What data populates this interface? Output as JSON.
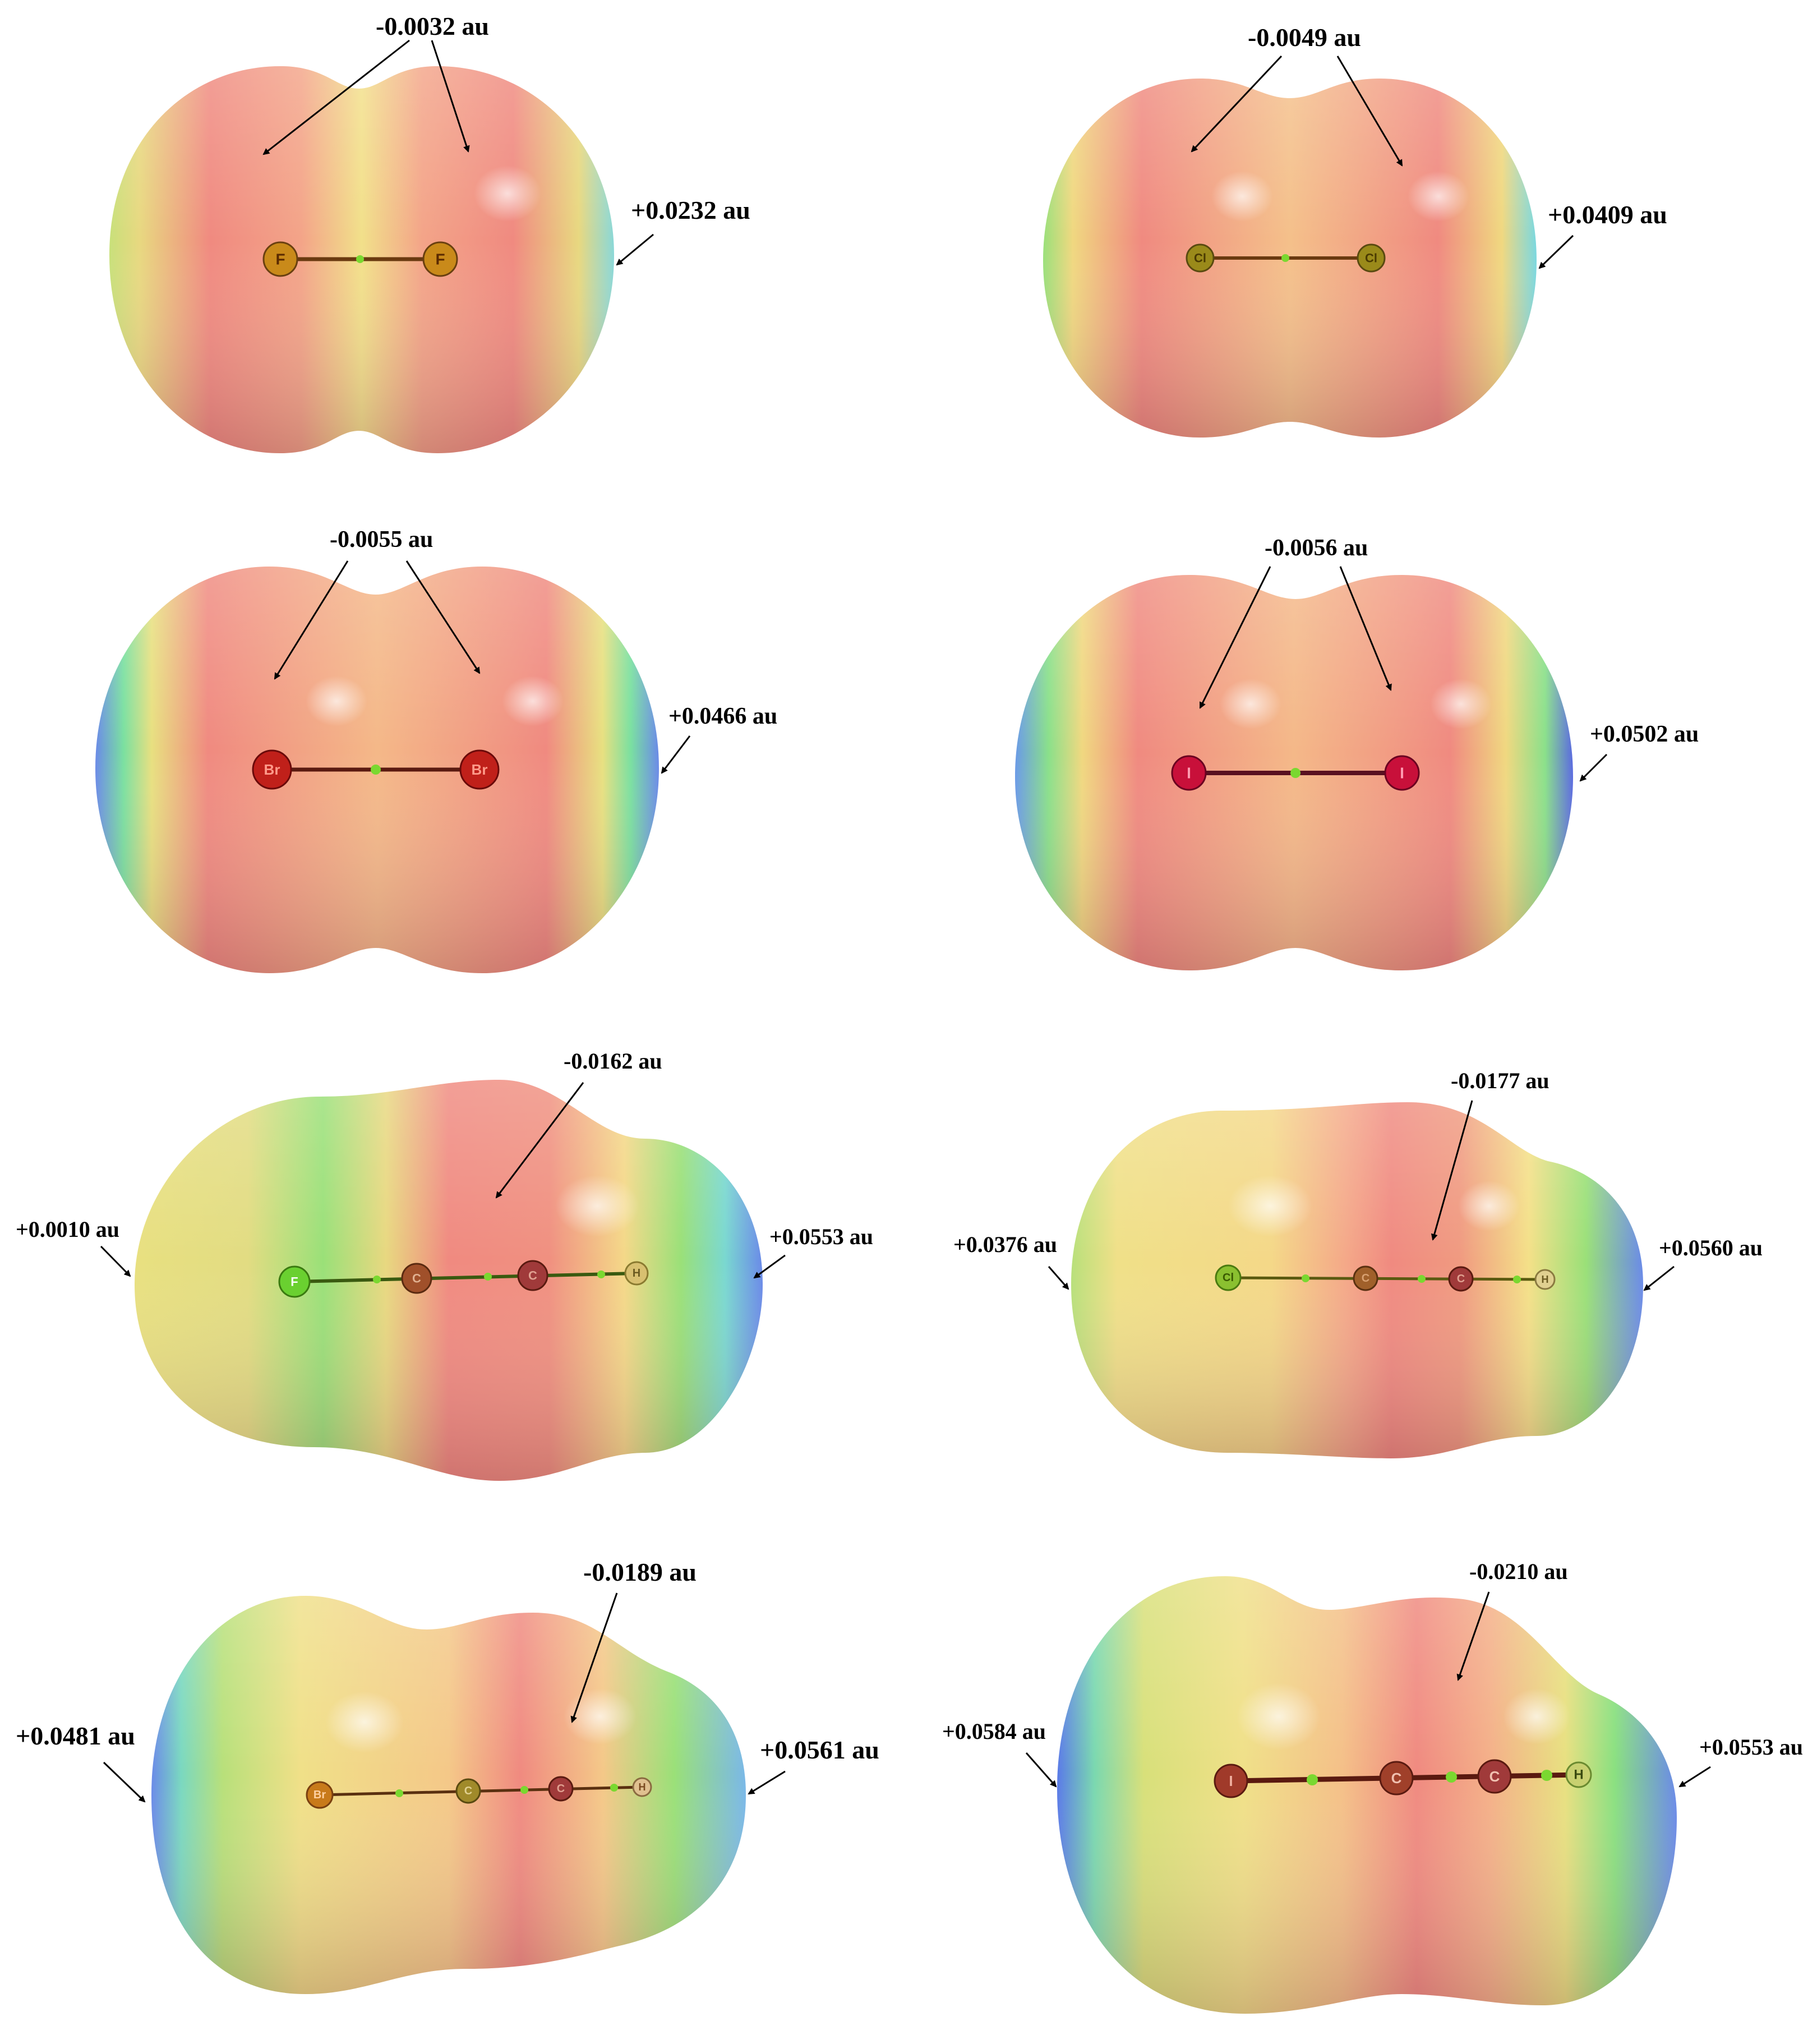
{
  "panels": [
    {
      "molecule": "F2",
      "atoms": [
        "F",
        "F"
      ],
      "top_value": "-0.0032 au",
      "left_value": "",
      "right_value": "+0.0232 au"
    },
    {
      "molecule": "Cl2",
      "atoms": [
        "Cl",
        "Cl"
      ],
      "top_value": "-0.0049 au",
      "left_value": "",
      "right_value": "+0.0409 au"
    },
    {
      "molecule": "Br2",
      "atoms": [
        "Br",
        "Br"
      ],
      "top_value": "-0.0055 au",
      "left_value": "",
      "right_value": "+0.0466 au"
    },
    {
      "molecule": "I2",
      "atoms": [
        "I",
        "I"
      ],
      "top_value": "-0.0056 au",
      "left_value": "",
      "right_value": "+0.0502 au"
    },
    {
      "molecule": "FCCH",
      "atoms": [
        "F",
        "C",
        "C",
        "H"
      ],
      "top_value": "-0.0162 au",
      "left_value": "+0.0010 au",
      "right_value": "+0.0553 au"
    },
    {
      "molecule": "ClCCH",
      "atoms": [
        "Cl",
        "C",
        "C",
        "H"
      ],
      "top_value": "-0.0177 au",
      "left_value": "+0.0376 au",
      "right_value": "+0.0560 au"
    },
    {
      "molecule": "BrCCH",
      "atoms": [
        "Br",
        "C",
        "C",
        "H"
      ],
      "top_value": "-0.0189 au",
      "left_value": "+0.0481 au",
      "right_value": "+0.0561 au"
    },
    {
      "molecule": "ICCH",
      "atoms": [
        "I",
        "C",
        "C",
        "H"
      ],
      "top_value": "-0.0210 au",
      "left_value": "+0.0584 au",
      "right_value": "+0.0553 au"
    }
  ],
  "colors": {
    "negative": "#f08080",
    "neutral": "#f2e07a",
    "intermediate": "#7fe07a",
    "positive": "#5b7fe8",
    "atom_F": "#c98a1a",
    "atom_Cl": "#9a8a1a",
    "atom_Br": "#c0201a",
    "atom_I": "#c8103a",
    "atom_C": "#a0502a",
    "atom_H": "#d8c070"
  }
}
